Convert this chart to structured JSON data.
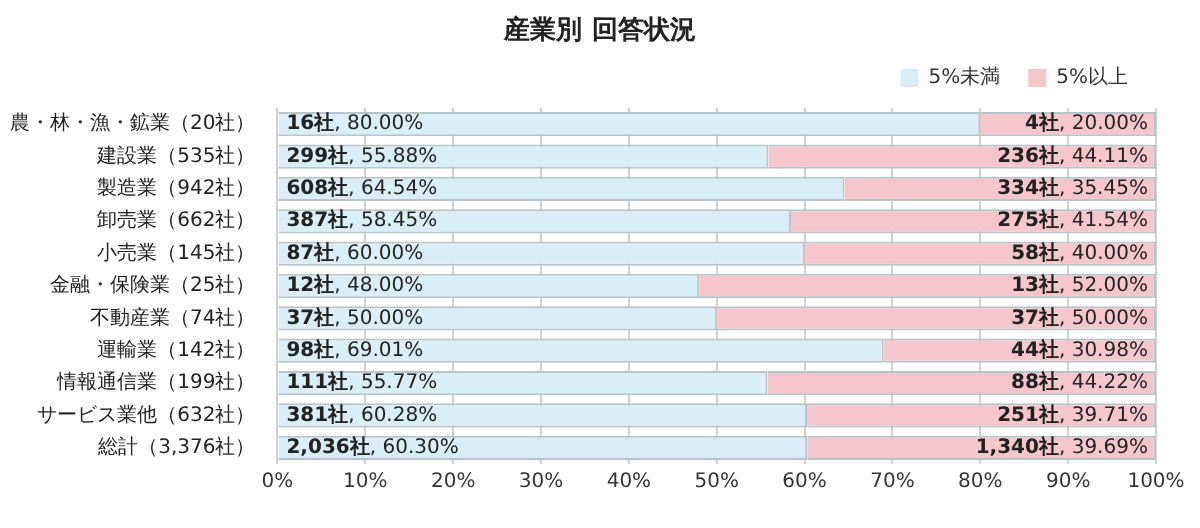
{
  "chart_data": {
    "type": "bar",
    "title": "産業別 回答状況",
    "orientation": "horizontal",
    "stacked": true,
    "categories": [
      "農・林・漁・鉱業（20社）",
      "建設業（535社）",
      "製造業（942社）",
      "卸売業（662社）",
      "小売業（145社）",
      "金融・保険業（25社）",
      "不動産業（74社）",
      "運輸業（142社）",
      "情報通信業（199社）",
      "サービス業他（632社）",
      "総計（3,376社）"
    ],
    "series": [
      {
        "name": "5%未満",
        "color": "#daeef8",
        "values": [
          80.0,
          55.88,
          64.54,
          58.45,
          60.0,
          48.0,
          50.0,
          69.01,
          55.77,
          60.28,
          60.3
        ],
        "value_labels": [
          "16社, 80.00%",
          "299社, 55.88%",
          "608社, 64.54%",
          "387社, 58.45%",
          "87社, 60.00%",
          "12社, 48.00%",
          "37社, 50.00%",
          "98社, 69.01%",
          "111社, 55.77%",
          "381社, 60.28%",
          "2,036社, 60.30%"
        ]
      },
      {
        "name": "5%以上",
        "color": "#f6c6cd",
        "values": [
          20.0,
          44.11,
          35.45,
          41.54,
          40.0,
          52.0,
          50.0,
          30.98,
          44.22,
          39.71,
          39.69
        ],
        "value_labels": [
          "4社, 20.00%",
          "236社, 44.11%",
          "334社, 35.45%",
          "275社, 41.54%",
          "58社, 40.00%",
          "13社, 52.00%",
          "37社, 50.00%",
          "44社, 30.98%",
          "88社, 44.22%",
          "251社, 39.71%",
          "1,340社, 39.69%"
        ]
      }
    ],
    "xlim": [
      0,
      100
    ],
    "xticks": [
      {
        "value": 0,
        "label": "0%"
      },
      {
        "value": 10,
        "label": "10%"
      },
      {
        "value": 20,
        "label": "20%"
      },
      {
        "value": 30,
        "label": "30%"
      },
      {
        "value": 40,
        "label": "40%"
      },
      {
        "value": 50,
        "label": "50%"
      },
      {
        "value": 60,
        "label": "60%"
      },
      {
        "value": 70,
        "label": "70%"
      },
      {
        "value": 80,
        "label": "80%"
      },
      {
        "value": 90,
        "label": "90%"
      },
      {
        "value": 100,
        "label": "100%"
      }
    ],
    "grid": "x",
    "legend": "top right"
  }
}
